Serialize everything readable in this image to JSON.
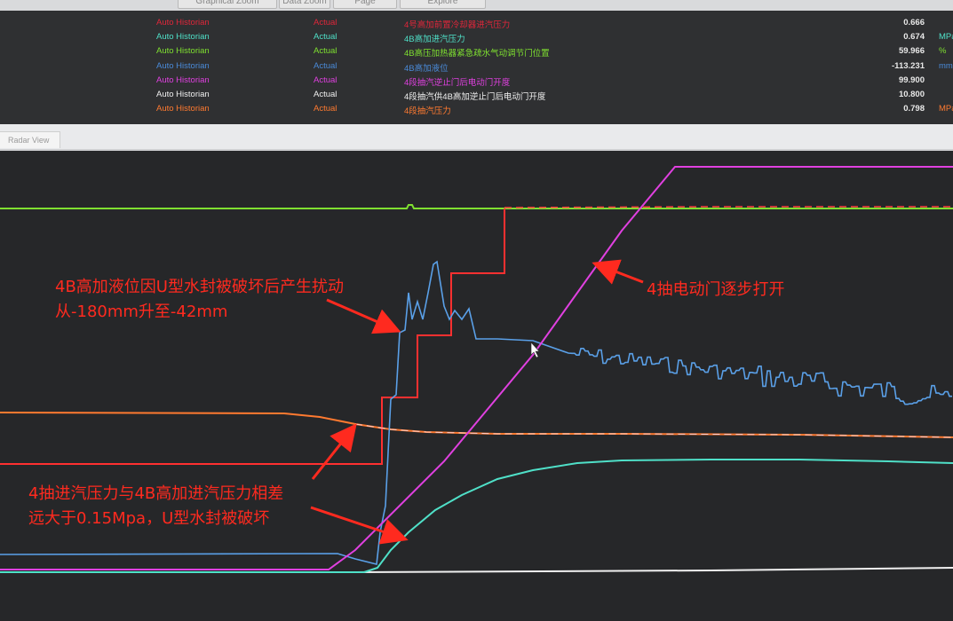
{
  "toolbar": {
    "buttons": [
      "Graphical Zoom",
      "Data Zoom",
      "Page",
      "Explore"
    ]
  },
  "legend": {
    "rows": [
      {
        "source": "Auto Historian",
        "type": "Actual",
        "name": "4号高加前置冷却器进汽压力",
        "value": "0.666",
        "unit": "",
        "color": "#e0263a"
      },
      {
        "source": "Auto Historian",
        "type": "Actual",
        "name": "4B高加进汽压力",
        "value": "0.674",
        "unit": "MPa",
        "color": "#4fe0c8"
      },
      {
        "source": "Auto Historian",
        "type": "Actual",
        "name": "4B高压加热器紧急疏水气动调节门位置",
        "value": "59.966",
        "unit": "%",
        "color": "#7fe030"
      },
      {
        "source": "Auto Historian",
        "type": "Actual",
        "name": "4B高加液位",
        "value": "-113.231",
        "unit": "mm",
        "color": "#4a8ad8"
      },
      {
        "source": "Auto Historian",
        "type": "Actual",
        "name": "4段抽汽逆止门后电动门开度",
        "value": "99.900",
        "unit": "",
        "color": "#e040e0"
      },
      {
        "source": "Auto Historian",
        "type": "Actual",
        "name": "4段抽汽供4B高加逆止门后电动门开度",
        "value": "10.800",
        "unit": "",
        "color": "#f0f0f0"
      },
      {
        "source": "Auto Historian",
        "type": "Actual",
        "name": "4段抽汽压力",
        "value": "0.798",
        "unit": "MPa",
        "color": "#ff7a30"
      }
    ]
  },
  "tabs": {
    "radar": "Radar View"
  },
  "annotations": {
    "level_line1": "4B高加液位因U型水封被破坏后产生扰动",
    "level_line2": "从-180mm升至-42mm",
    "valve": "4抽电动门逐步打开",
    "pressure_line1": "4抽进汽压力与4B高加进汽压力相差",
    "pressure_line2": "远大于0.15Mpa，U型水封被破坏"
  },
  "colors": {
    "annotation": "#ff2a1f",
    "trend_background": "#262729"
  }
}
